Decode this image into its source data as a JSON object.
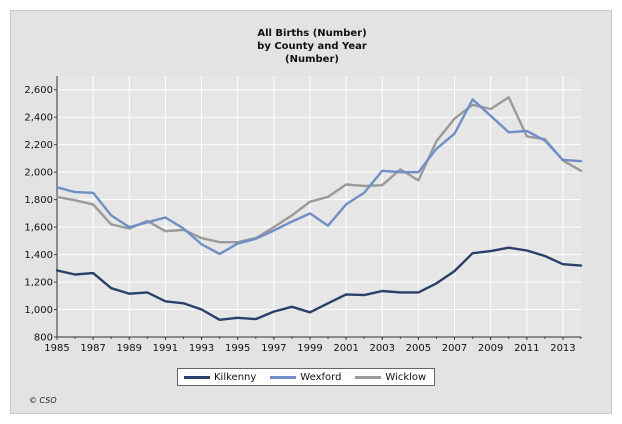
{
  "chart_data": {
    "type": "line",
    "title": "All Births (Number)",
    "subtitle": [
      "by County and Year",
      "(Number)"
    ],
    "xlabel": "",
    "ylabel": "",
    "x": [
      1985,
      1986,
      1987,
      1988,
      1989,
      1990,
      1991,
      1992,
      1993,
      1994,
      1995,
      1996,
      1997,
      1998,
      1999,
      2000,
      2001,
      2002,
      2003,
      2004,
      2005,
      2006,
      2007,
      2008,
      2009,
      2010,
      2011,
      2012,
      2013,
      2014
    ],
    "xticks": [
      "1985",
      "1987",
      "1989",
      "1991",
      "1993",
      "1995",
      "1997",
      "1999",
      "2001",
      "2003",
      "2005",
      "2007",
      "2009",
      "2011",
      "2013"
    ],
    "ylim": [
      800,
      2700
    ],
    "yticks": [
      "800",
      "1,000",
      "1,200",
      "1,400",
      "1,600",
      "1,800",
      "2,000",
      "2,200",
      "2,400",
      "2,600"
    ],
    "grid": true,
    "legend_position": "bottom",
    "series": [
      {
        "name": "Kilkenny",
        "color": "#2b3f6b",
        "values": [
          1285,
          1255,
          1265,
          1155,
          1115,
          1125,
          1060,
          1045,
          1000,
          925,
          940,
          930,
          985,
          1020,
          980,
          1045,
          1110,
          1105,
          1135,
          1125,
          1125,
          1190,
          1280,
          1410,
          1425,
          1450,
          1430,
          1390,
          1330,
          1320
        ]
      },
      {
        "name": "Wexford",
        "color": "#6f8fc6",
        "values": [
          1890,
          1855,
          1850,
          1685,
          1600,
          1635,
          1670,
          1590,
          1475,
          1405,
          1480,
          1515,
          1575,
          1640,
          1700,
          1610,
          1765,
          1850,
          2010,
          2000,
          2000,
          2170,
          2280,
          2530,
          2410,
          2290,
          2300,
          2230,
          2090,
          2080
        ]
      },
      {
        "name": "Wicklow",
        "color": "#9a9a9a",
        "values": [
          1820,
          1795,
          1765,
          1620,
          1590,
          1645,
          1570,
          1580,
          1520,
          1490,
          1490,
          1520,
          1600,
          1685,
          1785,
          1820,
          1910,
          1900,
          1905,
          2020,
          1940,
          2225,
          2390,
          2490,
          2460,
          2545,
          2260,
          2240,
          2085,
          2010
        ]
      }
    ]
  },
  "footer": {
    "copyright": "© CSO"
  }
}
